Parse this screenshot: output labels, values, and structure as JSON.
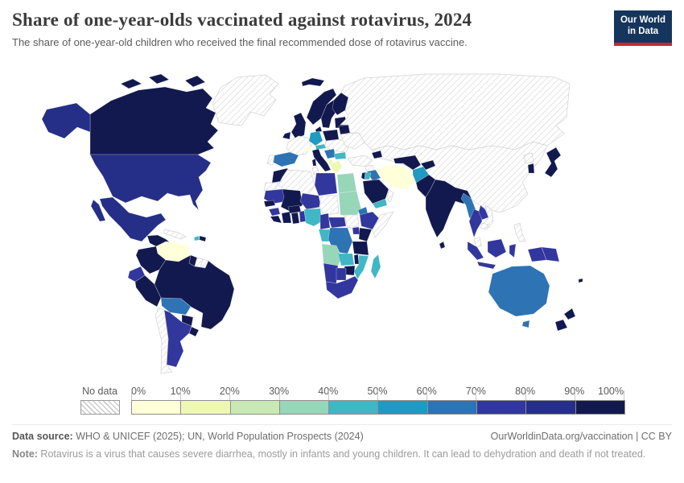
{
  "header": {
    "title": "Share of one-year-olds vaccinated against rotavirus, 2024",
    "subtitle": "The share of one-year-old children who received the final recommended dose of rotavirus vaccine."
  },
  "logo": {
    "line1": "Our World",
    "line2": "in Data",
    "bg": "#15355c",
    "accent": "#c7282d"
  },
  "legend": {
    "no_data_label": "No data",
    "ticks": [
      "0%",
      "10%",
      "20%",
      "30%",
      "40%",
      "50%",
      "60%",
      "70%",
      "80%",
      "90%",
      "100%"
    ],
    "buckets": [
      "0-10",
      "10-20",
      "20-30",
      "30-40",
      "40-50",
      "50-60",
      "60-70",
      "70-80",
      "80-90",
      "90-100"
    ],
    "colors": [
      "#ffffd9",
      "#eef8b2",
      "#c9e9b4",
      "#97d6b9",
      "#41b6c4",
      "#1f9ac0",
      "#2e73b3",
      "#32379d",
      "#252f87",
      "#12194e"
    ],
    "no_data_color": "#d2d2d2"
  },
  "footer": {
    "data_source_label": "Data source:",
    "data_source_text": " WHO & UNICEF (2025); UN, World Population Prospects (2024)",
    "link_text": "OurWorldinData.org/vaccination | CC BY",
    "note_label": "Note:",
    "note_text": " Rotavirus is a virus that causes severe diarrhea, mostly in infants and young children. It can lead to dehydration and death if not treated."
  },
  "map": {
    "countries": [
      {
        "id": "greenland",
        "name": "Greenland",
        "bucket": "no-data"
      },
      {
        "id": "canada",
        "name": "Canada",
        "bucket": "90-100"
      },
      {
        "id": "alaska",
        "name": "United States (Alaska)",
        "bucket": "80-90"
      },
      {
        "id": "united-states",
        "name": "United States",
        "bucket": "80-90"
      },
      {
        "id": "mexico",
        "name": "Mexico",
        "bucket": "80-90"
      },
      {
        "id": "central-america",
        "name": "Central America (Guatemala to Panama)",
        "bucket": "90-100"
      },
      {
        "id": "cuba",
        "name": "Cuba",
        "bucket": "no-data"
      },
      {
        "id": "haiti",
        "name": "Haiti",
        "bucket": "40-50"
      },
      {
        "id": "dominican-republic",
        "name": "Dominican Republic",
        "bucket": "90-100"
      },
      {
        "id": "venezuela",
        "name": "Venezuela",
        "bucket": "0-10"
      },
      {
        "id": "colombia",
        "name": "Colombia",
        "bucket": "90-100"
      },
      {
        "id": "guyana",
        "name": "Guyana",
        "bucket": "90-100"
      },
      {
        "id": "suriname",
        "name": "Suriname",
        "bucket": "no-data"
      },
      {
        "id": "french-guiana",
        "name": "French Guiana",
        "bucket": "no-data"
      },
      {
        "id": "ecuador",
        "name": "Ecuador",
        "bucket": "70-80"
      },
      {
        "id": "peru",
        "name": "Peru",
        "bucket": "90-100"
      },
      {
        "id": "brazil",
        "name": "Brazil",
        "bucket": "90-100"
      },
      {
        "id": "bolivia",
        "name": "Bolivia",
        "bucket": "60-70"
      },
      {
        "id": "paraguay",
        "name": "Paraguay",
        "bucket": "90-100"
      },
      {
        "id": "uruguay",
        "name": "Uruguay",
        "bucket": "90-100"
      },
      {
        "id": "argentina",
        "name": "Argentina",
        "bucket": "70-80"
      },
      {
        "id": "chile",
        "name": "Chile",
        "bucket": "no-data"
      },
      {
        "id": "iceland",
        "name": "Iceland",
        "bucket": "90-100"
      },
      {
        "id": "united-kingdom",
        "name": "United Kingdom",
        "bucket": "90-100"
      },
      {
        "id": "ireland",
        "name": "Ireland",
        "bucket": "90-100"
      },
      {
        "id": "norway",
        "name": "Norway",
        "bucket": "90-100"
      },
      {
        "id": "sweden",
        "name": "Sweden",
        "bucket": "90-100"
      },
      {
        "id": "finland",
        "name": "Finland",
        "bucket": "90-100"
      },
      {
        "id": "baltics",
        "name": "Baltic states",
        "bucket": "90-100"
      },
      {
        "id": "denmark",
        "name": "Denmark",
        "bucket": "90-100"
      },
      {
        "id": "france",
        "name": "France",
        "bucket": "no-data"
      },
      {
        "id": "spain",
        "name": "Spain",
        "bucket": "60-70"
      },
      {
        "id": "portugal",
        "name": "Portugal",
        "bucket": "no-data"
      },
      {
        "id": "germany",
        "name": "Germany",
        "bucket": "50-60"
      },
      {
        "id": "switzerland",
        "name": "Switzerland",
        "bucket": "0-10"
      },
      {
        "id": "austria",
        "name": "Austria",
        "bucket": "40-50"
      },
      {
        "id": "italy",
        "name": "Italy",
        "bucket": "90-100"
      },
      {
        "id": "poland",
        "name": "Poland",
        "bucket": "90-100"
      },
      {
        "id": "central-europe",
        "name": "Czechia, Hungary, Romania",
        "bucket": "no-data"
      },
      {
        "id": "belarus",
        "name": "Belarus",
        "bucket": "90-100"
      },
      {
        "id": "ukraine",
        "name": "Ukraine",
        "bucket": "no-data"
      },
      {
        "id": "western-balkans",
        "name": "Croatia, Serbia",
        "bucket": "60-70"
      },
      {
        "id": "albania",
        "name": "Albania",
        "bucket": "10-20"
      },
      {
        "id": "bulgaria",
        "name": "Bulgaria",
        "bucket": "40-50"
      },
      {
        "id": "greece",
        "name": "Greece",
        "bucket": "10-20"
      },
      {
        "id": "russia",
        "name": "Russia",
        "bucket": "no-data"
      },
      {
        "id": "kazakhstan-china",
        "name": "Kazakhstan, Mongolia, China",
        "bucket": "no-data"
      },
      {
        "id": "turkey",
        "name": "Turkey",
        "bucket": "no-data"
      },
      {
        "id": "syria",
        "name": "Syria",
        "bucket": "no-data"
      },
      {
        "id": "iraq",
        "name": "Iraq",
        "bucket": "60-70"
      },
      {
        "id": "iran",
        "name": "Iran",
        "bucket": "0-10"
      },
      {
        "id": "israel",
        "name": "Israel",
        "bucket": "90-100"
      },
      {
        "id": "jordan",
        "name": "Jordan",
        "bucket": "40-50"
      },
      {
        "id": "saudi-arabia",
        "name": "Saudi Arabia",
        "bucket": "90-100"
      },
      {
        "id": "yemen",
        "name": "Yemen",
        "bucket": "40-50"
      },
      {
        "id": "oman",
        "name": "Oman",
        "bucket": "no-data"
      },
      {
        "id": "caucasus",
        "name": "Georgia, Azerbaijan",
        "bucket": "90-100"
      },
      {
        "id": "uzbekistan-turkmenistan",
        "name": "Uzbekistan, Turkmenistan",
        "bucket": "90-100"
      },
      {
        "id": "tajikistan-kyrgyzstan",
        "name": "Tajikistan, Kyrgyzstan",
        "bucket": "90-100"
      },
      {
        "id": "afghanistan",
        "name": "Afghanistan",
        "bucket": "50-60"
      },
      {
        "id": "pakistan",
        "name": "Pakistan",
        "bucket": "90-100"
      },
      {
        "id": "india",
        "name": "India",
        "bucket": "90-100"
      },
      {
        "id": "sri-lanka",
        "name": "Sri Lanka",
        "bucket": "90-100"
      },
      {
        "id": "myanmar",
        "name": "Myanmar",
        "bucket": "60-70"
      },
      {
        "id": "thailand",
        "name": "Thailand",
        "bucket": "70-80"
      },
      {
        "id": "laos",
        "name": "Laos",
        "bucket": "70-80"
      },
      {
        "id": "vietnam",
        "name": "Vietnam",
        "bucket": "no-data"
      },
      {
        "id": "cambodia",
        "name": "Cambodia",
        "bucket": "no-data"
      },
      {
        "id": "malaysia",
        "name": "Malaysia",
        "bucket": "no-data"
      },
      {
        "id": "indonesia",
        "name": "Indonesia",
        "bucket": "70-80"
      },
      {
        "id": "papua-new-guinea",
        "name": "Papua New Guinea",
        "bucket": "70-80"
      },
      {
        "id": "philippines",
        "name": "Philippines",
        "bucket": "no-data"
      },
      {
        "id": "south-korea",
        "name": "South Korea",
        "bucket": "90-100"
      },
      {
        "id": "north-korea",
        "name": "North Korea",
        "bucket": "no-data"
      },
      {
        "id": "japan",
        "name": "Japan",
        "bucket": "90-100"
      },
      {
        "id": "morocco",
        "name": "Morocco",
        "bucket": "90-100"
      },
      {
        "id": "western-sahara",
        "name": "Western Sahara",
        "bucket": "no-data"
      },
      {
        "id": "algeria",
        "name": "Algeria",
        "bucket": "no-data"
      },
      {
        "id": "tunisia",
        "name": "Tunisia",
        "bucket": "no-data"
      },
      {
        "id": "libya",
        "name": "Libya",
        "bucket": "70-80"
      },
      {
        "id": "egypt",
        "name": "Egypt",
        "bucket": "30-40"
      },
      {
        "id": "mauritania",
        "name": "Mauritania",
        "bucket": "70-80"
      },
      {
        "id": "mali",
        "name": "Mali",
        "bucket": "90-100"
      },
      {
        "id": "niger",
        "name": "Niger",
        "bucket": "70-80"
      },
      {
        "id": "chad",
        "name": "Chad",
        "bucket": "no-data"
      },
      {
        "id": "sudan",
        "name": "Sudan",
        "bucket": "30-40"
      },
      {
        "id": "eritrea",
        "name": "Eritrea",
        "bucket": "60-70"
      },
      {
        "id": "ethiopia",
        "name": "Ethiopia",
        "bucket": "70-80"
      },
      {
        "id": "somalia",
        "name": "Somalia",
        "bucket": "no-data"
      },
      {
        "id": "senegal",
        "name": "Senegal",
        "bucket": "90-100"
      },
      {
        "id": "guinea",
        "name": "Guinea",
        "bucket": "70-80"
      },
      {
        "id": "sierra-leone-liberia",
        "name": "Sierra Leone, Liberia",
        "bucket": "90-100"
      },
      {
        "id": "cote-divoire",
        "name": "Côte d'Ivoire",
        "bucket": "90-100"
      },
      {
        "id": "ghana",
        "name": "Ghana",
        "bucket": "90-100"
      },
      {
        "id": "burkina-faso",
        "name": "Burkina Faso",
        "bucket": "90-100"
      },
      {
        "id": "togo-benin",
        "name": "Togo, Benin",
        "bucket": "70-80"
      },
      {
        "id": "nigeria",
        "name": "Nigeria",
        "bucket": "40-50"
      },
      {
        "id": "cameroon",
        "name": "Cameroon",
        "bucket": "70-80"
      },
      {
        "id": "central-african-republic",
        "name": "Central African Republic",
        "bucket": "70-80"
      },
      {
        "id": "south-sudan",
        "name": "South Sudan",
        "bucket": "no-data"
      },
      {
        "id": "gabon-congo",
        "name": "Gabon, Congo",
        "bucket": "40-50"
      },
      {
        "id": "dr-congo",
        "name": "Democratic Republic of Congo",
        "bucket": "60-70"
      },
      {
        "id": "uganda",
        "name": "Uganda",
        "bucket": "70-80"
      },
      {
        "id": "kenya",
        "name": "Kenya",
        "bucket": "90-100"
      },
      {
        "id": "tanzania",
        "name": "Tanzania",
        "bucket": "90-100"
      },
      {
        "id": "angola",
        "name": "Angola",
        "bucket": "30-40"
      },
      {
        "id": "zambia",
        "name": "Zambia",
        "bucket": "40-50"
      },
      {
        "id": "malawi",
        "name": "Malawi",
        "bucket": "90-100"
      },
      {
        "id": "mozambique",
        "name": "Mozambique",
        "bucket": "40-50"
      },
      {
        "id": "zimbabwe",
        "name": "Zimbabwe",
        "bucket": "90-100"
      },
      {
        "id": "namibia",
        "name": "Namibia",
        "bucket": "70-80"
      },
      {
        "id": "botswana",
        "name": "Botswana",
        "bucket": "70-80"
      },
      {
        "id": "south-africa",
        "name": "South Africa",
        "bucket": "70-80"
      },
      {
        "id": "madagascar",
        "name": "Madagascar",
        "bucket": "40-50"
      },
      {
        "id": "australia",
        "name": "Australia",
        "bucket": "60-70"
      },
      {
        "id": "new-zealand",
        "name": "New Zealand",
        "bucket": "90-100"
      },
      {
        "id": "fiji",
        "name": "Fiji",
        "bucket": "90-100"
      }
    ]
  }
}
